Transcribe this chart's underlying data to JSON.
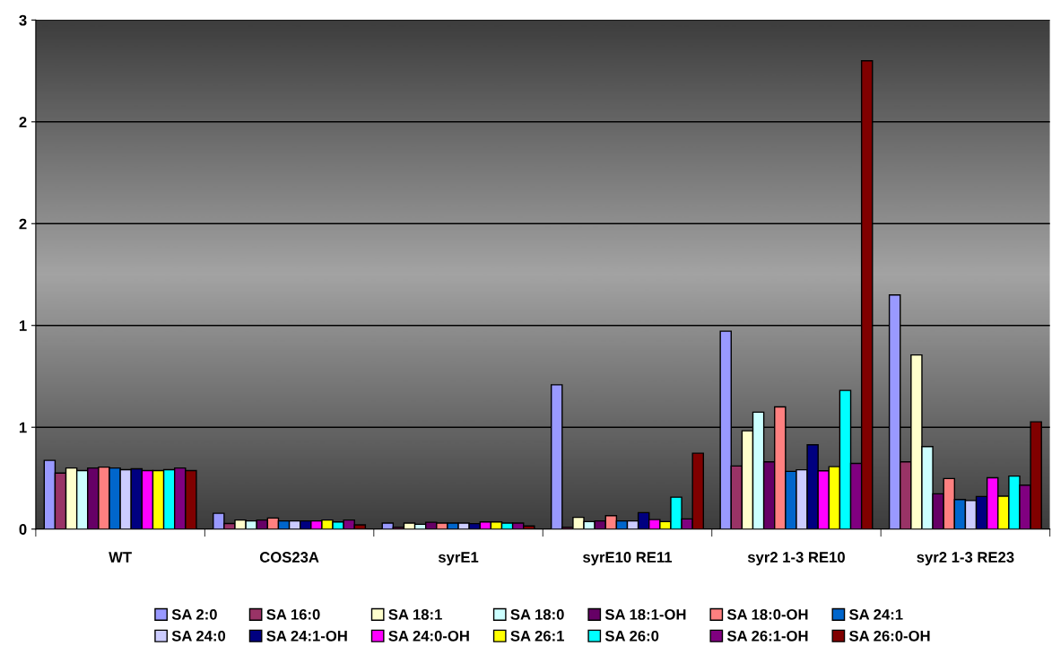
{
  "chart_data": {
    "type": "bar",
    "categories": [
      "WT",
      "COS23A",
      "syrE1",
      "syrE10 RE11",
      "syr2 1-3 RE10",
      "syr2 1-3 RE23"
    ],
    "ylim": [
      0,
      3
    ],
    "yticks": [
      0,
      {
        "value": 0.6,
        "label": "1"
      },
      {
        "value": 1.2,
        "label": "1"
      },
      {
        "value": 1.8,
        "label": "2"
      },
      {
        "value": 2.4,
        "label": "2"
      },
      3
    ],
    "grid": "y",
    "legend": "bottom",
    "series": [
      {
        "name": "SA 2:0",
        "color": "#9999ff",
        "values": [
          0.405,
          0.093,
          0.035,
          0.85,
          1.166,
          1.38
        ]
      },
      {
        "name": "SA 16:0",
        "color": "#993366",
        "values": [
          0.33,
          0.033,
          0.01,
          0.01,
          0.372,
          0.396
        ]
      },
      {
        "name": "SA 18:1",
        "color": "#ffffcc",
        "values": [
          0.36,
          0.053,
          0.035,
          0.069,
          0.579,
          1.026
        ]
      },
      {
        "name": "SA 18:0",
        "color": "#ccffff",
        "values": [
          0.345,
          0.048,
          0.028,
          0.044,
          0.689,
          0.486
        ]
      },
      {
        "name": "SA 18:1-OH",
        "color": "#660066",
        "values": [
          0.36,
          0.053,
          0.04,
          0.048,
          0.396,
          0.208
        ]
      },
      {
        "name": "SA 18:0-OH",
        "color": "#ff8080",
        "values": [
          0.365,
          0.065,
          0.035,
          0.079,
          0.72,
          0.298
        ]
      },
      {
        "name": "SA 24:1",
        "color": "#0066cc",
        "values": [
          0.36,
          0.048,
          0.035,
          0.048,
          0.34,
          0.174
        ]
      },
      {
        "name": "SA 24:0",
        "color": "#ccccff",
        "values": [
          0.35,
          0.048,
          0.035,
          0.048,
          0.349,
          0.168
        ]
      },
      {
        "name": "SA 24:1-OH",
        "color": "#000080",
        "values": [
          0.355,
          0.048,
          0.032,
          0.097,
          0.497,
          0.192
        ]
      },
      {
        "name": "SA 24:0-OH",
        "color": "#ff00ff",
        "values": [
          0.345,
          0.048,
          0.042,
          0.056,
          0.343,
          0.302
        ]
      },
      {
        "name": "SA 26:1",
        "color": "#ffff00",
        "values": [
          0.345,
          0.053,
          0.042,
          0.044,
          0.368,
          0.194
        ]
      },
      {
        "name": "SA 26:0",
        "color": "#00ffff",
        "values": [
          0.35,
          0.042,
          0.035,
          0.188,
          0.817,
          0.312
        ]
      },
      {
        "name": "SA 26:1-OH",
        "color": "#800080",
        "values": [
          0.36,
          0.053,
          0.035,
          0.06,
          0.387,
          0.259
        ]
      },
      {
        "name": "SA 26:0-OH",
        "color": "#800000",
        "values": [
          0.345,
          0.025,
          0.018,
          0.447,
          2.76,
          0.632
        ]
      }
    ]
  }
}
